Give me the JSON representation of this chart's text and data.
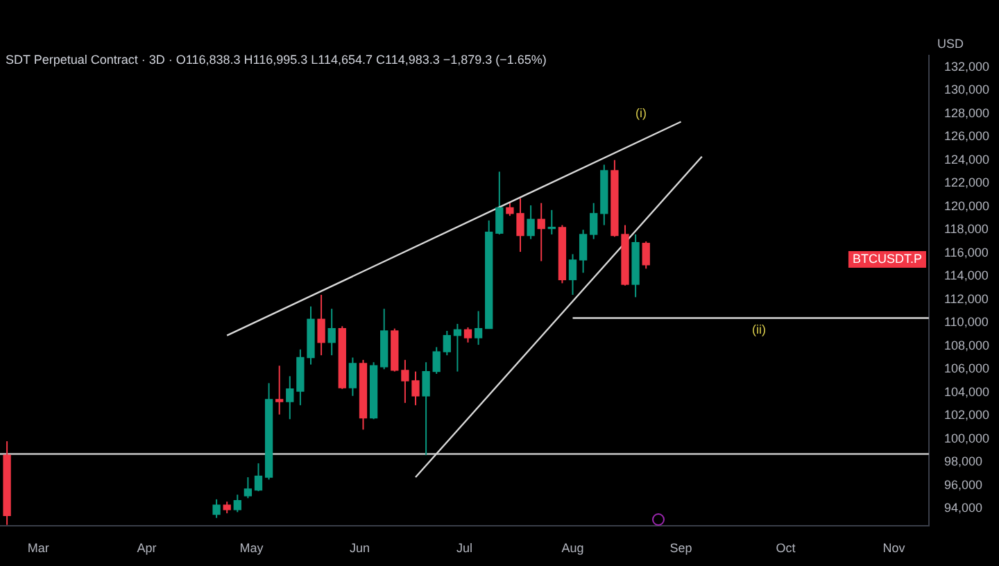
{
  "chart_data": {
    "type": "candlestick",
    "title": "SDT Perpetual Contract · 3D · O116,838.3 H116,995.3 L114,654.7 C114,983.3 −1,879.3 (−1.65%)",
    "ylabel": "USD",
    "x": [
      "--02-20",
      "--04-21",
      "--04-24",
      "--04-27",
      "--04-30",
      "--05-03",
      "--05-06",
      "--05-09",
      "--05-12",
      "--05-15",
      "--05-18",
      "--05-21",
      "--05-24",
      "--05-27",
      "--05-30",
      "--06-02",
      "--06-05",
      "--06-08",
      "--06-11",
      "--06-14",
      "--06-17",
      "--06-20",
      "--06-23",
      "--06-26",
      "--06-29",
      "--07-02",
      "--07-05",
      "--07-08",
      "--07-11",
      "--07-14",
      "--07-17",
      "--07-20",
      "--07-23",
      "--07-26",
      "--07-29",
      "--08-01",
      "--08-04",
      "--08-07",
      "--08-10",
      "--08-13",
      "--08-16",
      "--08-19",
      "--08-22"
    ],
    "ohlc": [
      [
        98600,
        99800,
        92600,
        93400
      ],
      [
        93500,
        94800,
        93200,
        94300
      ],
      [
        94300,
        94600,
        93600,
        93900
      ],
      [
        93900,
        95200,
        93700,
        94700
      ],
      [
        95100,
        96700,
        94900,
        95700
      ],
      [
        95600,
        97900,
        95500,
        96800
      ],
      [
        96700,
        104800,
        96500,
        103400
      ],
      [
        103400,
        106300,
        102100,
        103200
      ],
      [
        103200,
        105400,
        101700,
        104300
      ],
      [
        104100,
        107700,
        102900,
        107000
      ],
      [
        107000,
        111400,
        106400,
        110300
      ],
      [
        110300,
        112400,
        107200,
        108300
      ],
      [
        108300,
        111200,
        107200,
        109500
      ],
      [
        109500,
        109700,
        104300,
        104400
      ],
      [
        104400,
        107000,
        103700,
        106500
      ],
      [
        106500,
        106800,
        100800,
        101800
      ],
      [
        101800,
        106600,
        101700,
        106300
      ],
      [
        106200,
        111200,
        106000,
        109300
      ],
      [
        109300,
        109500,
        105800,
        105900
      ],
      [
        105900,
        106800,
        103100,
        105000
      ],
      [
        105000,
        105800,
        102900,
        103700
      ],
      [
        103700,
        106600,
        98600,
        105800
      ],
      [
        105800,
        107900,
        105600,
        107500
      ],
      [
        107500,
        109300,
        107200,
        108900
      ],
      [
        108900,
        109900,
        105800,
        109400
      ],
      [
        109400,
        109600,
        108300,
        108700
      ],
      [
        108700,
        111000,
        108100,
        109500
      ],
      [
        109500,
        118800,
        109500,
        117800
      ],
      [
        117700,
        123000,
        117600,
        119900
      ],
      [
        119900,
        120400,
        119200,
        119400
      ],
      [
        119400,
        120700,
        116100,
        117500
      ],
      [
        117500,
        120100,
        117200,
        118900
      ],
      [
        118900,
        120300,
        115300,
        118100
      ],
      [
        118100,
        119700,
        117600,
        118100
      ],
      [
        118200,
        118400,
        113400,
        113700
      ],
      [
        113700,
        115900,
        112400,
        115400
      ],
      [
        115400,
        118000,
        114300,
        117600
      ],
      [
        117600,
        120300,
        117200,
        119400
      ],
      [
        119400,
        123600,
        118400,
        123100
      ],
      [
        123100,
        124000,
        117400,
        117500
      ],
      [
        117600,
        118400,
        113200,
        113300
      ],
      [
        113300,
        117600,
        112200,
        116900
      ],
      [
        116838.3,
        116995.3,
        114654.7,
        114983.3
      ]
    ],
    "colors": [
      "#f23645",
      "#089981",
      "#f23645",
      "#089981",
      "#089981",
      "#089981",
      "#089981",
      "#f23645",
      "#089981",
      "#089981",
      "#089981",
      "#f23645",
      "#089981",
      "#f23645",
      "#089981",
      "#f23645",
      "#089981",
      "#089981",
      "#f23645",
      "#f23645",
      "#f23645",
      "#089981",
      "#089981",
      "#089981",
      "#089981",
      "#f23645",
      "#089981",
      "#089981",
      "#089981",
      "#f23645",
      "#f23645",
      "#089981",
      "#f23645",
      "#089981",
      "#f23645",
      "#089981",
      "#089981",
      "#089981",
      "#089981",
      "#f23645",
      "#f23645",
      "#089981",
      "#f23645"
    ],
    "series": [
      {
        "type": "line",
        "color": "#d9d9d9",
        "x": [
          "--04-24",
          "--09-01"
        ],
        "values": [
          108900,
          127300
        ]
      },
      {
        "type": "line",
        "color": "#d9d9d9",
        "x": [
          "--06-17",
          "--09-07"
        ],
        "values": [
          96700,
          124300
        ]
      },
      {
        "type": "line",
        "color": "#d9d9d9",
        "x": [
          "--08-01",
          "--11-11"
        ],
        "values": [
          110400,
          110400
        ]
      }
    ],
    "ref_lines": [
      {
        "axis": "y",
        "value": 98700,
        "color": "#c8c8c8"
      }
    ],
    "annotations": [
      "(i)",
      "(ii)",
      "BTCUSDT.P"
    ],
    "xlim": [
      "--02-18",
      "--11-11"
    ],
    "xticks": [
      {
        "value": "--03-01",
        "label": "Mar"
      },
      {
        "value": "--04-01",
        "label": "Apr"
      },
      {
        "value": "--05-01",
        "label": "May"
      },
      {
        "value": "--06-01",
        "label": "Jun"
      },
      {
        "value": "--07-01",
        "label": "Jul"
      },
      {
        "value": "--08-01",
        "label": "Aug"
      },
      {
        "value": "--09-01",
        "label": "Sep"
      },
      {
        "value": "--10-01",
        "label": "Oct"
      },
      {
        "value": "--11-01",
        "label": "Nov"
      }
    ],
    "ylim": [
      92500,
      133000
    ],
    "yticks": [
      {
        "value": 94000,
        "label": "94,000"
      },
      {
        "value": 96000,
        "label": "96,000"
      },
      {
        "value": 98000,
        "label": "98,000"
      },
      {
        "value": 100000,
        "label": "100,000"
      },
      {
        "value": 102000,
        "label": "102,000"
      },
      {
        "value": 104000,
        "label": "104,000"
      },
      {
        "value": 106000,
        "label": "106,000"
      },
      {
        "value": 108000,
        "label": "108,000"
      },
      {
        "value": 110000,
        "label": "110,000"
      },
      {
        "value": 112000,
        "label": "112,000"
      },
      {
        "value": 114000,
        "label": "114,000"
      },
      {
        "value": 116000,
        "label": "116,000"
      },
      {
        "value": 118000,
        "label": "118,000"
      },
      {
        "value": 120000,
        "label": "120,000"
      },
      {
        "value": 122000,
        "label": "122,000"
      },
      {
        "value": 124000,
        "label": "124,000"
      },
      {
        "value": 126000,
        "label": "126,000"
      },
      {
        "value": 128000,
        "label": "128,000"
      },
      {
        "value": 130000,
        "label": "130,000"
      },
      {
        "value": 132000,
        "label": "132,000"
      }
    ]
  }
}
